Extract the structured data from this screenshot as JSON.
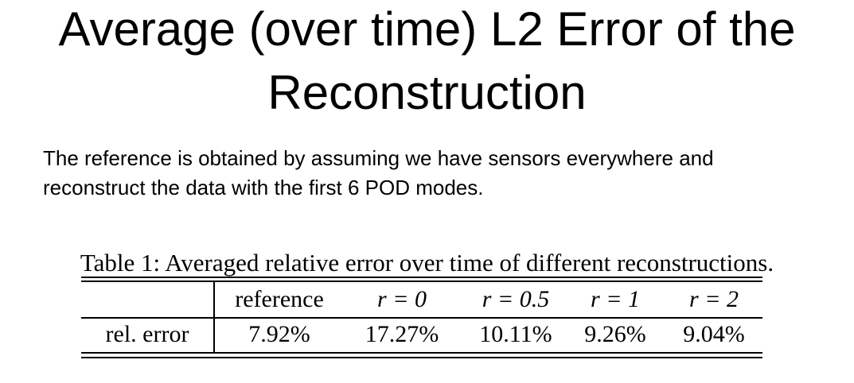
{
  "slide": {
    "title_line1": "Average (over time) L2 Error of the",
    "title_line2": "Reconstruction",
    "description_line1": "The reference is obtained by assuming we have sensors everywhere and",
    "description_line2": "reconstruct the data with the first 6 POD modes."
  },
  "table": {
    "caption": "Table 1: Averaged relative error over time of different reconstructions.",
    "row_label": "rel. error",
    "columns": [
      {
        "header": "reference",
        "value": "7.92%"
      },
      {
        "header": "r = 0",
        "value": "17.27%"
      },
      {
        "header": "r = 0.5",
        "value": "10.11%"
      },
      {
        "header": "r = 1",
        "value": "9.26%"
      },
      {
        "header": "r = 2",
        "value": "9.04%"
      }
    ]
  }
}
